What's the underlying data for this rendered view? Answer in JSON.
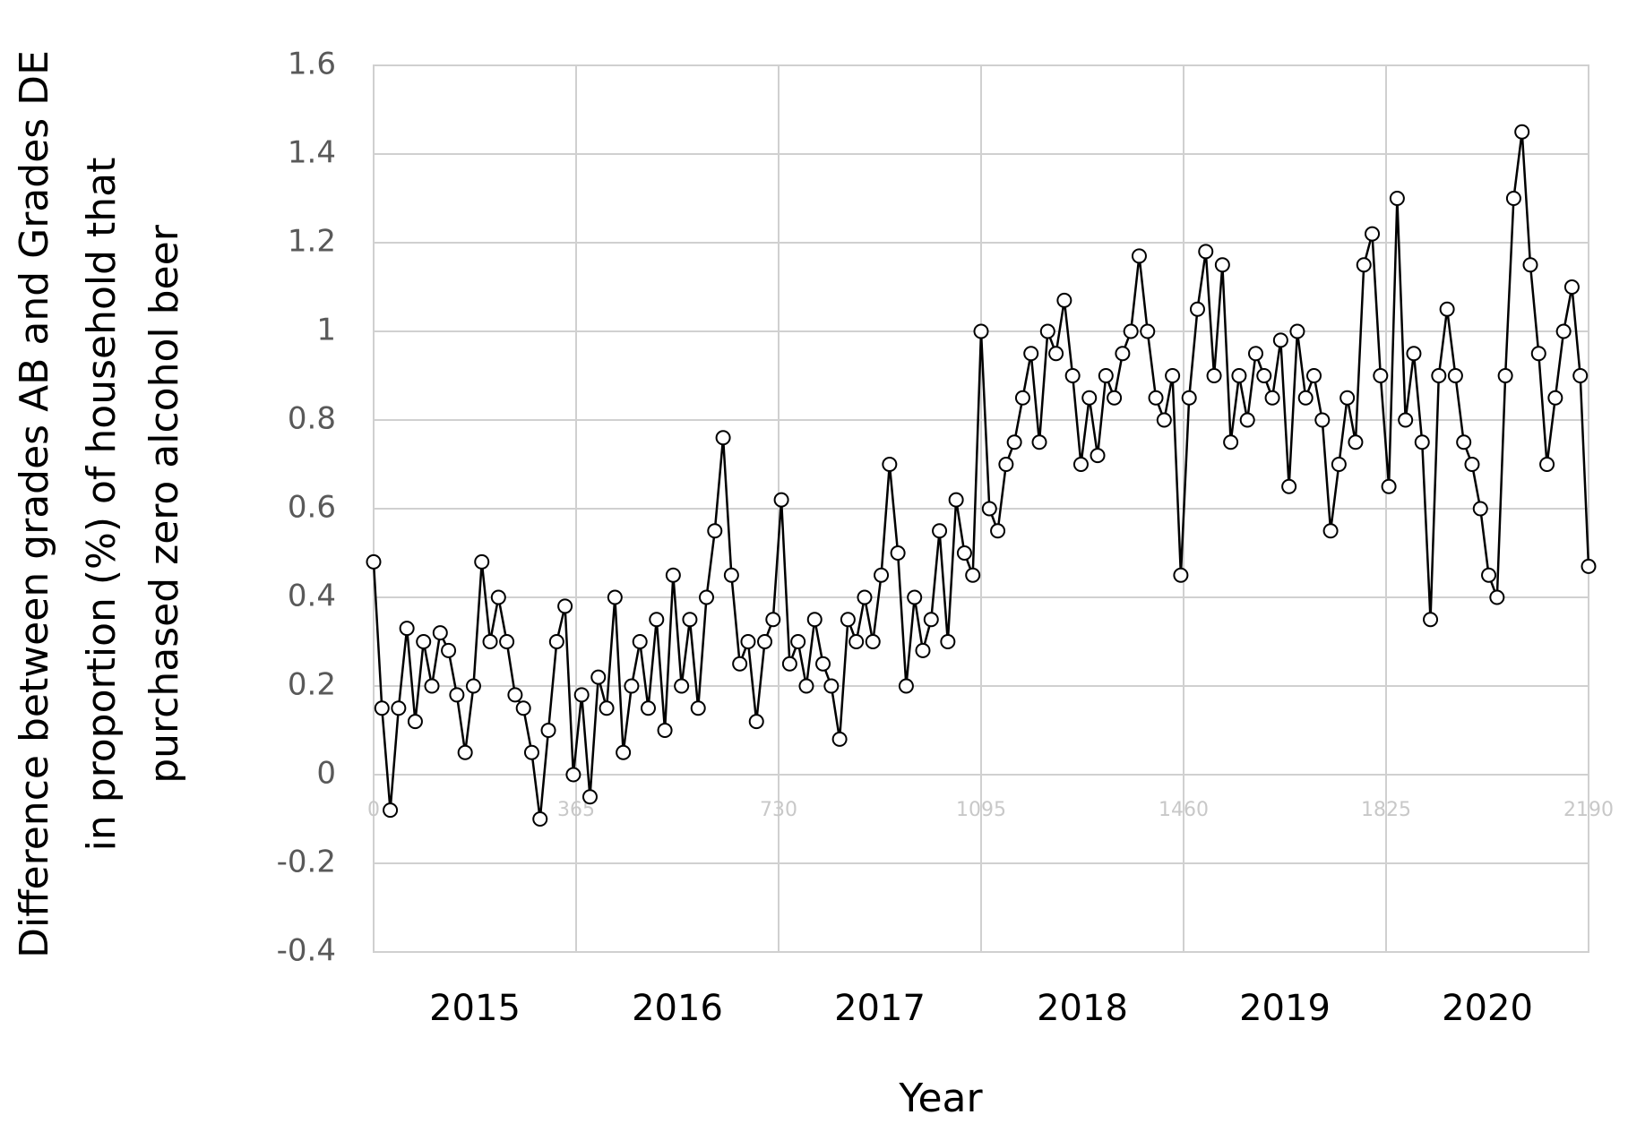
{
  "chart_data": {
    "type": "line",
    "x_label": "Year",
    "y_label": [
      "Difference between grades AB and Grades DE",
      "in proportion (%) of household that",
      "purchased zero alcohol beer"
    ],
    "year_labels": [
      "2015",
      "2016",
      "2017",
      "2018",
      "2019",
      "2020"
    ],
    "color": "#000000",
    "marker_fill": "#ffffff",
    "grid": true,
    "xlim": [
      0,
      2190
    ],
    "xticks": [
      0,
      365,
      730,
      1095,
      1460,
      1825,
      2190
    ],
    "ylim": [
      -0.4,
      1.6
    ],
    "yticks": [
      -0.4,
      -0.2,
      0,
      0.2,
      0.4,
      0.6,
      0.8,
      1,
      1.2,
      1.4,
      1.6
    ],
    "x": [
      0,
      15,
      30,
      45,
      60,
      75,
      90,
      105,
      120,
      135,
      150,
      165,
      180,
      195,
      210,
      225,
      240,
      255,
      270,
      285,
      300,
      315,
      330,
      345,
      360,
      375,
      390,
      405,
      420,
      435,
      450,
      465,
      480,
      495,
      510,
      525,
      540,
      555,
      570,
      585,
      600,
      615,
      630,
      645,
      660,
      675,
      690,
      705,
      720,
      735,
      750,
      765,
      780,
      795,
      810,
      825,
      840,
      855,
      870,
      885,
      900,
      915,
      930,
      945,
      960,
      975,
      990,
      1005,
      1020,
      1035,
      1050,
      1065,
      1080,
      1095,
      1110,
      1125,
      1140,
      1155,
      1170,
      1185,
      1200,
      1215,
      1230,
      1245,
      1260,
      1275,
      1290,
      1305,
      1320,
      1335,
      1350,
      1365,
      1380,
      1395,
      1410,
      1425,
      1440,
      1455,
      1470,
      1485,
      1500,
      1515,
      1530,
      1545,
      1560,
      1575,
      1590,
      1605,
      1620,
      1635,
      1650,
      1665,
      1680,
      1695,
      1710,
      1725,
      1740,
      1755,
      1770,
      1785,
      1800,
      1815,
      1830,
      1845,
      1860,
      1875,
      1890,
      1905,
      1920,
      1935,
      1950,
      1965,
      1980,
      1995,
      2010,
      2025,
      2040,
      2055,
      2070,
      2085,
      2100,
      2115,
      2130,
      2145,
      2160,
      2175,
      2190
    ],
    "values": [
      0.48,
      0.15,
      -0.08,
      0.15,
      0.33,
      0.12,
      0.3,
      0.2,
      0.32,
      0.28,
      0.18,
      0.05,
      0.2,
      0.48,
      0.3,
      0.4,
      0.3,
      0.18,
      0.15,
      0.05,
      -0.1,
      0.1,
      0.3,
      0.38,
      0.0,
      0.18,
      -0.05,
      0.22,
      0.15,
      0.4,
      0.05,
      0.2,
      0.3,
      0.15,
      0.35,
      0.1,
      0.45,
      0.2,
      0.35,
      0.15,
      0.4,
      0.55,
      0.76,
      0.45,
      0.25,
      0.3,
      0.12,
      0.3,
      0.35,
      0.62,
      0.25,
      0.3,
      0.2,
      0.35,
      0.25,
      0.2,
      0.08,
      0.35,
      0.3,
      0.4,
      0.3,
      0.45,
      0.7,
      0.5,
      0.2,
      0.4,
      0.28,
      0.35,
      0.55,
      0.3,
      0.62,
      0.5,
      0.45,
      1.0,
      0.6,
      0.55,
      0.7,
      0.75,
      0.85,
      0.95,
      0.75,
      1.0,
      0.95,
      1.07,
      0.9,
      0.7,
      0.85,
      0.72,
      0.9,
      0.85,
      0.95,
      1.0,
      1.17,
      1.0,
      0.85,
      0.8,
      0.9,
      0.45,
      0.85,
      1.05,
      1.18,
      0.9,
      1.15,
      0.75,
      0.9,
      0.8,
      0.95,
      0.9,
      0.85,
      0.98,
      0.65,
      1.0,
      0.85,
      0.9,
      0.8,
      0.55,
      0.7,
      0.85,
      0.75,
      1.15,
      1.22,
      0.9,
      0.65,
      1.3,
      0.8,
      0.95,
      0.75,
      0.35,
      0.9,
      1.05,
      0.9,
      0.75,
      0.7,
      0.6,
      0.45,
      0.4,
      0.9,
      1.3,
      1.45,
      1.15,
      0.95,
      0.7,
      0.85,
      1.0,
      1.1,
      0.9,
      0.47
    ]
  }
}
